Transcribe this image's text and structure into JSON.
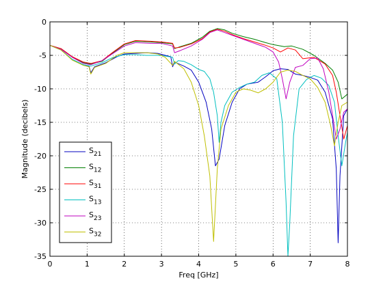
{
  "chart_data": {
    "type": "line",
    "xlabel": "Freq [GHz]",
    "ylabel": "Magnitude (decibels)",
    "xlim": [
      0,
      8
    ],
    "ylim": [
      -35,
      0
    ],
    "xticks": [
      0,
      1,
      2,
      3,
      4,
      5,
      6,
      7,
      8
    ],
    "yticks": [
      0,
      -5,
      -10,
      -15,
      -20,
      -25,
      -30,
      -35
    ],
    "grid": true,
    "legend_position": "bottom-left",
    "series": [
      {
        "name": "S",
        "sub": "21",
        "color": "#0000bf",
        "points": [
          [
            0,
            -3.5
          ],
          [
            0.3,
            -4.2
          ],
          [
            0.6,
            -5.6
          ],
          [
            0.9,
            -6.4
          ],
          [
            1.05,
            -6.6
          ],
          [
            1.1,
            -7.6
          ],
          [
            1.2,
            -6.7
          ],
          [
            1.5,
            -6.1
          ],
          [
            1.8,
            -5.2
          ],
          [
            2.0,
            -4.8
          ],
          [
            2.3,
            -4.7
          ],
          [
            2.6,
            -4.6
          ],
          [
            2.9,
            -4.7
          ],
          [
            3.1,
            -5.0
          ],
          [
            3.25,
            -5.2
          ],
          [
            3.3,
            -6.7
          ],
          [
            3.35,
            -6.0
          ],
          [
            3.6,
            -6.6
          ],
          [
            3.8,
            -7.2
          ],
          [
            4.0,
            -9.0
          ],
          [
            4.2,
            -12.0
          ],
          [
            4.35,
            -16.0
          ],
          [
            4.45,
            -21.5
          ],
          [
            4.55,
            -20.5
          ],
          [
            4.7,
            -15.5
          ],
          [
            4.9,
            -12.0
          ],
          [
            5.1,
            -10.0
          ],
          [
            5.3,
            -9.3
          ],
          [
            5.6,
            -9.0
          ],
          [
            5.8,
            -8.2
          ],
          [
            6.0,
            -7.3
          ],
          [
            6.2,
            -7.0
          ],
          [
            6.4,
            -7.1
          ],
          [
            6.6,
            -7.8
          ],
          [
            6.8,
            -8.0
          ],
          [
            7.0,
            -8.3
          ],
          [
            7.2,
            -8.7
          ],
          [
            7.4,
            -10.5
          ],
          [
            7.6,
            -14.5
          ],
          [
            7.7,
            -22.0
          ],
          [
            7.75,
            -33.0
          ],
          [
            7.8,
            -23.0
          ],
          [
            7.9,
            -14.0
          ],
          [
            8.0,
            -13.0
          ]
        ]
      },
      {
        "name": "S",
        "sub": "12",
        "color": "#007f00",
        "points": [
          [
            0,
            -3.5
          ],
          [
            0.3,
            -4.0
          ],
          [
            0.6,
            -5.2
          ],
          [
            0.9,
            -6.1
          ],
          [
            1.1,
            -6.3
          ],
          [
            1.4,
            -5.9
          ],
          [
            1.7,
            -4.6
          ],
          [
            2.0,
            -3.4
          ],
          [
            2.3,
            -2.9
          ],
          [
            2.7,
            -3.0
          ],
          [
            3.0,
            -3.1
          ],
          [
            3.3,
            -3.3
          ],
          [
            3.35,
            -4.0
          ],
          [
            3.5,
            -3.7
          ],
          [
            3.8,
            -3.2
          ],
          [
            4.1,
            -2.3
          ],
          [
            4.3,
            -1.4
          ],
          [
            4.5,
            -1.0
          ],
          [
            4.7,
            -1.2
          ],
          [
            4.9,
            -1.7
          ],
          [
            5.2,
            -2.2
          ],
          [
            5.5,
            -2.6
          ],
          [
            5.8,
            -3.1
          ],
          [
            6.0,
            -3.4
          ],
          [
            6.3,
            -3.7
          ],
          [
            6.5,
            -3.6
          ],
          [
            6.8,
            -4.1
          ],
          [
            7.1,
            -5.0
          ],
          [
            7.4,
            -6.2
          ],
          [
            7.6,
            -7.2
          ],
          [
            7.75,
            -9.0
          ],
          [
            7.85,
            -11.5
          ],
          [
            8.0,
            -10.8
          ]
        ]
      },
      {
        "name": "S",
        "sub": "31",
        "color": "#ff0000",
        "points": [
          [
            0,
            -3.5
          ],
          [
            0.3,
            -4.0
          ],
          [
            0.6,
            -5.2
          ],
          [
            0.9,
            -6.0
          ],
          [
            1.1,
            -6.2
          ],
          [
            1.4,
            -5.8
          ],
          [
            1.7,
            -4.5
          ],
          [
            2.0,
            -3.3
          ],
          [
            2.3,
            -2.8
          ],
          [
            2.7,
            -2.9
          ],
          [
            3.0,
            -3.0
          ],
          [
            3.3,
            -3.2
          ],
          [
            3.35,
            -3.9
          ],
          [
            3.5,
            -3.8
          ],
          [
            3.8,
            -3.3
          ],
          [
            4.1,
            -2.5
          ],
          [
            4.3,
            -1.5
          ],
          [
            4.5,
            -1.1
          ],
          [
            4.7,
            -1.4
          ],
          [
            4.9,
            -1.9
          ],
          [
            5.2,
            -2.5
          ],
          [
            5.5,
            -3.0
          ],
          [
            5.8,
            -3.5
          ],
          [
            6.0,
            -3.9
          ],
          [
            6.2,
            -4.5
          ],
          [
            6.4,
            -3.9
          ],
          [
            6.6,
            -4.2
          ],
          [
            6.8,
            -5.5
          ],
          [
            7.1,
            -5.3
          ],
          [
            7.4,
            -6.3
          ],
          [
            7.6,
            -8.0
          ],
          [
            7.7,
            -10.5
          ],
          [
            7.8,
            -14.0
          ],
          [
            7.9,
            -17.5
          ],
          [
            8.0,
            -15.5
          ]
        ]
      },
      {
        "name": "S",
        "sub": "13",
        "color": "#00bfbf",
        "points": [
          [
            0,
            -3.5
          ],
          [
            0.3,
            -4.2
          ],
          [
            0.6,
            -5.6
          ],
          [
            0.9,
            -6.4
          ],
          [
            1.1,
            -6.6
          ],
          [
            1.4,
            -6.1
          ],
          [
            1.7,
            -5.3
          ],
          [
            2.0,
            -4.9
          ],
          [
            2.3,
            -4.9
          ],
          [
            2.6,
            -5.0
          ],
          [
            2.9,
            -5.0
          ],
          [
            3.1,
            -5.1
          ],
          [
            3.3,
            -5.3
          ],
          [
            3.35,
            -6.3
          ],
          [
            3.45,
            -5.8
          ],
          [
            3.6,
            -5.9
          ],
          [
            3.8,
            -6.4
          ],
          [
            4.0,
            -7.1
          ],
          [
            4.15,
            -7.4
          ],
          [
            4.3,
            -8.5
          ],
          [
            4.4,
            -10.5
          ],
          [
            4.5,
            -14.0
          ],
          [
            4.55,
            -18.0
          ],
          [
            4.6,
            -15.0
          ],
          [
            4.7,
            -12.5
          ],
          [
            4.9,
            -10.5
          ],
          [
            5.1,
            -9.8
          ],
          [
            5.3,
            -9.3
          ],
          [
            5.5,
            -9.0
          ],
          [
            5.7,
            -8.0
          ],
          [
            5.9,
            -7.6
          ],
          [
            6.1,
            -8.5
          ],
          [
            6.25,
            -15.0
          ],
          [
            6.35,
            -27.0
          ],
          [
            6.4,
            -35.0
          ],
          [
            6.45,
            -30.0
          ],
          [
            6.55,
            -17.0
          ],
          [
            6.7,
            -10.0
          ],
          [
            6.9,
            -8.6
          ],
          [
            7.1,
            -8.0
          ],
          [
            7.3,
            -8.4
          ],
          [
            7.5,
            -9.5
          ],
          [
            7.65,
            -12.0
          ],
          [
            7.75,
            -17.0
          ],
          [
            7.85,
            -21.5
          ],
          [
            7.95,
            -18.0
          ],
          [
            8.0,
            -16.5
          ]
        ]
      },
      {
        "name": "S",
        "sub": "23",
        "color": "#bf00bf",
        "points": [
          [
            0,
            -3.5
          ],
          [
            0.3,
            -4.1
          ],
          [
            0.6,
            -5.3
          ],
          [
            0.9,
            -6.2
          ],
          [
            1.1,
            -6.4
          ],
          [
            1.4,
            -5.8
          ],
          [
            1.7,
            -4.7
          ],
          [
            2.0,
            -3.6
          ],
          [
            2.3,
            -3.1
          ],
          [
            2.7,
            -3.2
          ],
          [
            3.0,
            -3.2
          ],
          [
            3.3,
            -3.6
          ],
          [
            3.35,
            -4.6
          ],
          [
            3.5,
            -4.3
          ],
          [
            3.8,
            -3.6
          ],
          [
            4.1,
            -2.6
          ],
          [
            4.3,
            -1.6
          ],
          [
            4.5,
            -1.2
          ],
          [
            4.7,
            -1.6
          ],
          [
            4.9,
            -2.0
          ],
          [
            5.2,
            -2.6
          ],
          [
            5.5,
            -3.2
          ],
          [
            5.8,
            -3.8
          ],
          [
            6.0,
            -4.5
          ],
          [
            6.15,
            -6.0
          ],
          [
            6.25,
            -8.5
          ],
          [
            6.35,
            -11.5
          ],
          [
            6.45,
            -9.0
          ],
          [
            6.6,
            -6.8
          ],
          [
            6.8,
            -6.5
          ],
          [
            7.0,
            -5.5
          ],
          [
            7.2,
            -5.4
          ],
          [
            7.35,
            -7.0
          ],
          [
            7.5,
            -10.5
          ],
          [
            7.6,
            -14.0
          ],
          [
            7.7,
            -17.5
          ],
          [
            7.8,
            -16.0
          ],
          [
            7.9,
            -13.5
          ],
          [
            8.0,
            -13.0
          ]
        ]
      },
      {
        "name": "S",
        "sub": "32",
        "color": "#bfbf00",
        "points": [
          [
            0,
            -3.5
          ],
          [
            0.3,
            -4.2
          ],
          [
            0.6,
            -5.7
          ],
          [
            0.9,
            -6.5
          ],
          [
            1.05,
            -6.7
          ],
          [
            1.1,
            -7.8
          ],
          [
            1.2,
            -6.8
          ],
          [
            1.5,
            -6.2
          ],
          [
            1.8,
            -5.0
          ],
          [
            2.0,
            -4.6
          ],
          [
            2.3,
            -4.6
          ],
          [
            2.6,
            -4.6
          ],
          [
            2.9,
            -4.8
          ],
          [
            3.1,
            -5.3
          ],
          [
            3.3,
            -6.5
          ],
          [
            3.35,
            -5.9
          ],
          [
            3.6,
            -7.0
          ],
          [
            3.8,
            -9.0
          ],
          [
            4.0,
            -12.5
          ],
          [
            4.15,
            -17.0
          ],
          [
            4.3,
            -23.0
          ],
          [
            4.4,
            -32.8
          ],
          [
            4.5,
            -22.0
          ],
          [
            4.6,
            -16.0
          ],
          [
            4.8,
            -12.5
          ],
          [
            5.0,
            -10.5
          ],
          [
            5.2,
            -10.0
          ],
          [
            5.4,
            -10.2
          ],
          [
            5.6,
            -10.6
          ],
          [
            5.8,
            -10.0
          ],
          [
            6.0,
            -9.0
          ],
          [
            6.2,
            -7.5
          ],
          [
            6.4,
            -7.2
          ],
          [
            6.6,
            -7.4
          ],
          [
            6.8,
            -8.0
          ],
          [
            7.0,
            -8.5
          ],
          [
            7.2,
            -9.8
          ],
          [
            7.4,
            -12.0
          ],
          [
            7.55,
            -15.5
          ],
          [
            7.65,
            -18.5
          ],
          [
            7.75,
            -15.0
          ],
          [
            7.85,
            -12.5
          ],
          [
            8.0,
            -12.0
          ]
        ]
      }
    ]
  }
}
